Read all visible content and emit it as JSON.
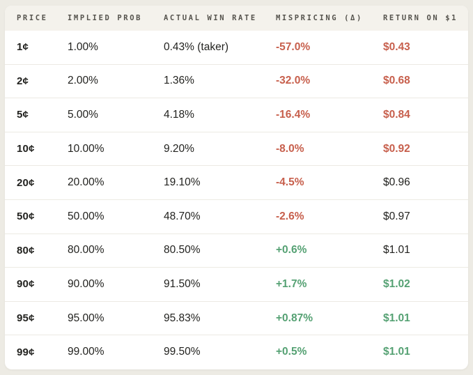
{
  "colors": {
    "negative": "#c75f4c",
    "positive": "#55a173",
    "neutral_text": "#22221f",
    "header_bg": "#f4f2ec",
    "page_bg": "#edebe4"
  },
  "table": {
    "columns": [
      {
        "label": "PRICE"
      },
      {
        "label": "IMPLIED PROB"
      },
      {
        "label": "ACTUAL WIN RATE"
      },
      {
        "label": "MISPRICING (Δ)"
      },
      {
        "label": "RETURN ON $1"
      }
    ],
    "rows": [
      {
        "price": "1¢",
        "implied_prob": "1.00%",
        "actual_win_rate": "0.43% (taker)",
        "mispricing": "-57.0%",
        "mispricing_tone": "negative",
        "return_on_1": "$0.43",
        "return_tone": "negative"
      },
      {
        "price": "2¢",
        "implied_prob": "2.00%",
        "actual_win_rate": "1.36%",
        "mispricing": "-32.0%",
        "mispricing_tone": "negative",
        "return_on_1": "$0.68",
        "return_tone": "negative"
      },
      {
        "price": "5¢",
        "implied_prob": "5.00%",
        "actual_win_rate": "4.18%",
        "mispricing": "-16.4%",
        "mispricing_tone": "negative",
        "return_on_1": "$0.84",
        "return_tone": "negative"
      },
      {
        "price": "10¢",
        "implied_prob": "10.00%",
        "actual_win_rate": "9.20%",
        "mispricing": "-8.0%",
        "mispricing_tone": "negative",
        "return_on_1": "$0.92",
        "return_tone": "negative"
      },
      {
        "price": "20¢",
        "implied_prob": "20.00%",
        "actual_win_rate": "19.10%",
        "mispricing": "-4.5%",
        "mispricing_tone": "negative",
        "return_on_1": "$0.96",
        "return_tone": "neutral"
      },
      {
        "price": "50¢",
        "implied_prob": "50.00%",
        "actual_win_rate": "48.70%",
        "mispricing": "-2.6%",
        "mispricing_tone": "negative",
        "return_on_1": "$0.97",
        "return_tone": "neutral"
      },
      {
        "price": "80¢",
        "implied_prob": "80.00%",
        "actual_win_rate": "80.50%",
        "mispricing": "+0.6%",
        "mispricing_tone": "positive",
        "return_on_1": "$1.01",
        "return_tone": "neutral"
      },
      {
        "price": "90¢",
        "implied_prob": "90.00%",
        "actual_win_rate": "91.50%",
        "mispricing": "+1.7%",
        "mispricing_tone": "positive",
        "return_on_1": "$1.02",
        "return_tone": "positive"
      },
      {
        "price": "95¢",
        "implied_prob": "95.00%",
        "actual_win_rate": "95.83%",
        "mispricing": "+0.87%",
        "mispricing_tone": "positive",
        "return_on_1": "$1.01",
        "return_tone": "positive"
      },
      {
        "price": "99¢",
        "implied_prob": "99.00%",
        "actual_win_rate": "99.50%",
        "mispricing": "+0.5%",
        "mispricing_tone": "positive",
        "return_on_1": "$1.01",
        "return_tone": "positive"
      }
    ]
  }
}
